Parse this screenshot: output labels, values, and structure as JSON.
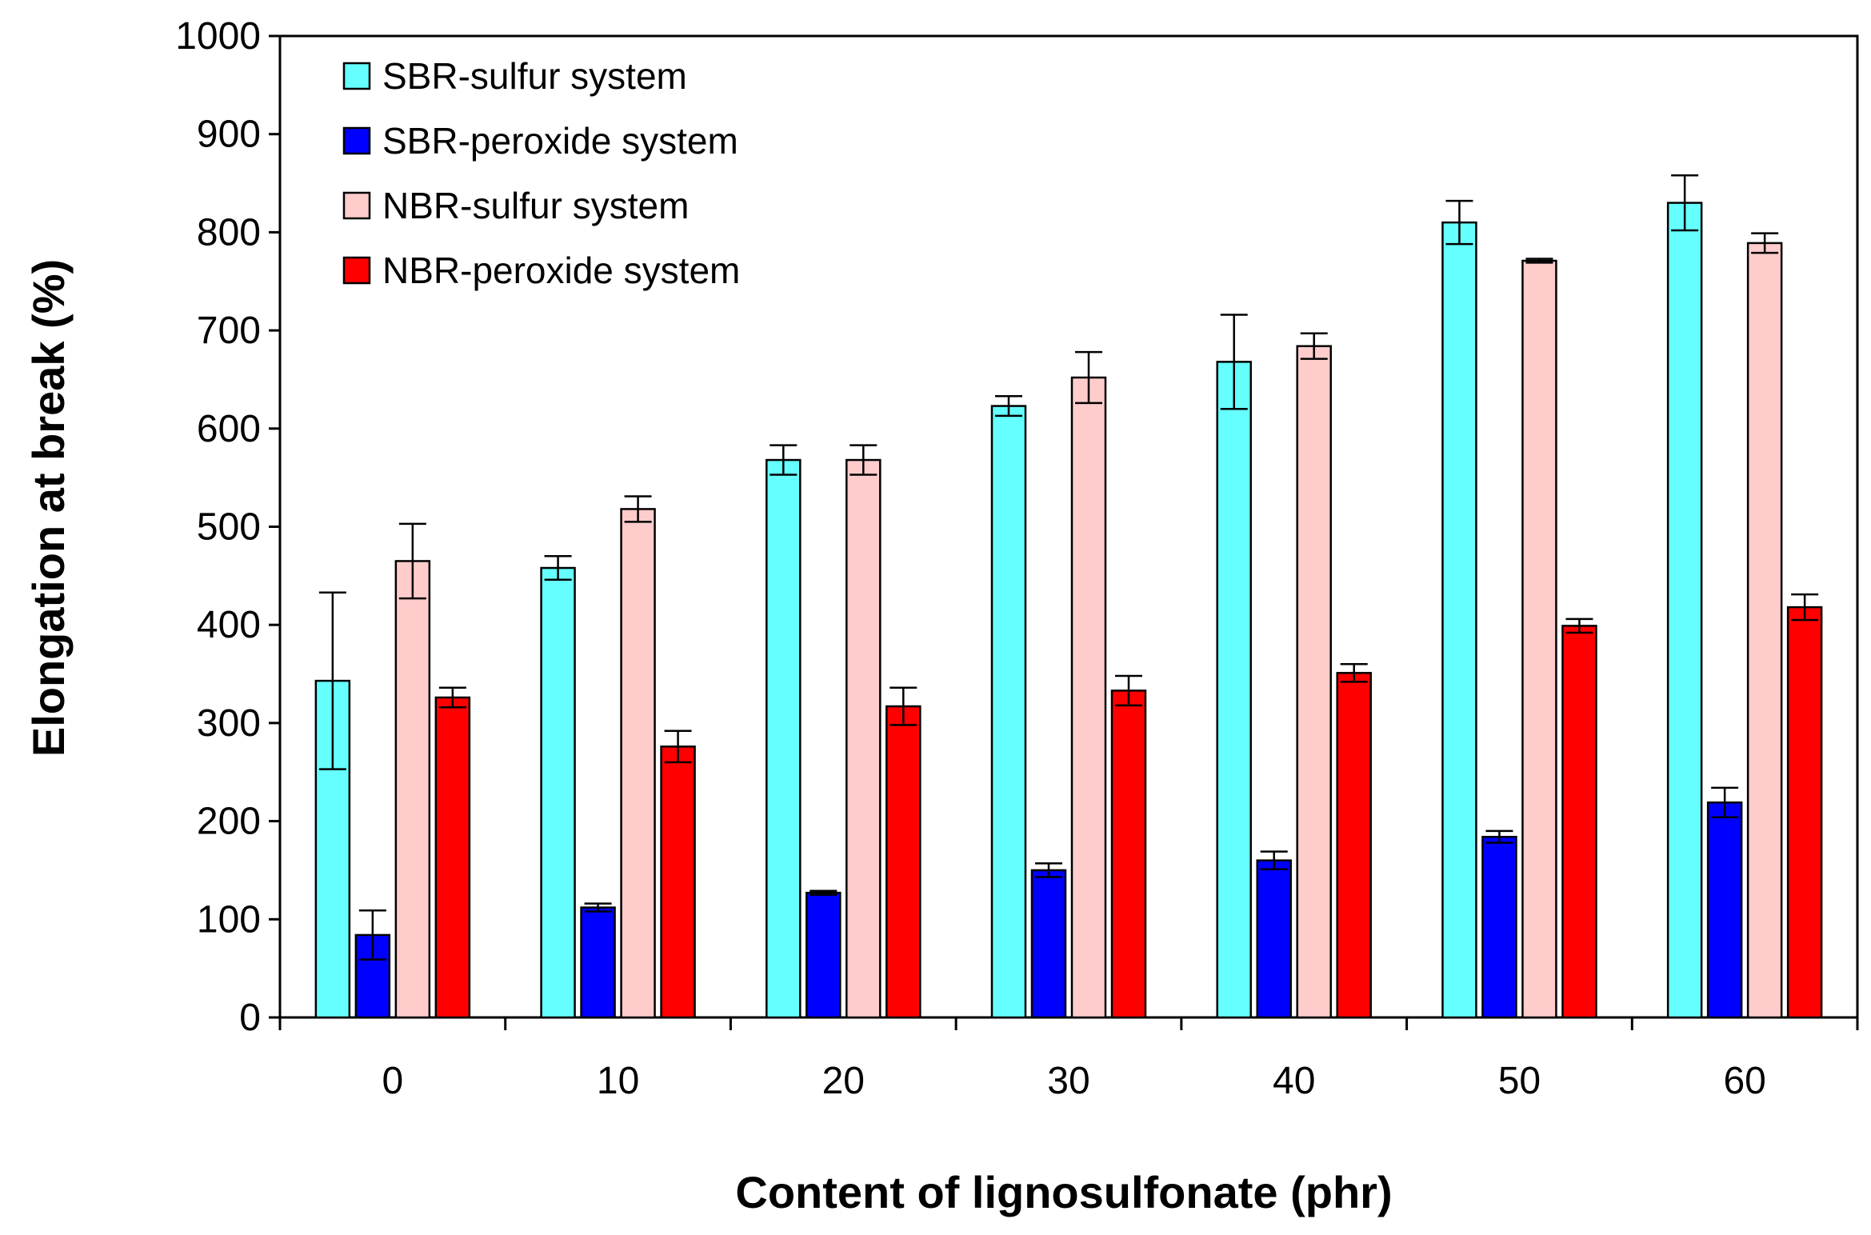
{
  "chart_data": {
    "type": "bar",
    "xlabel": "Content of lignosulfonate (phr)",
    "ylabel": "Elongation at break (%)",
    "ylim": [
      0,
      1000
    ],
    "yticks": [
      0,
      100,
      200,
      300,
      400,
      500,
      600,
      700,
      800,
      900,
      1000
    ],
    "categories": [
      "0",
      "10",
      "20",
      "30",
      "40",
      "50",
      "60"
    ],
    "legend_position": "top-left",
    "grid": false,
    "series": [
      {
        "name": "SBR-sulfur system",
        "color": "#66ffff",
        "values": [
          343,
          458,
          568,
          623,
          668,
          810,
          830
        ],
        "errors": [
          90,
          12,
          15,
          10,
          48,
          22,
          28
        ]
      },
      {
        "name": "SBR-peroxide system",
        "color": "#0000ff",
        "values": [
          84,
          112,
          127,
          150,
          160,
          184,
          219
        ],
        "errors": [
          25,
          4,
          2,
          7,
          9,
          6,
          15
        ]
      },
      {
        "name": "NBR-sulfur system",
        "color": "#ffcccc",
        "values": [
          465,
          518,
          568,
          652,
          684,
          771,
          789
        ],
        "errors": [
          38,
          13,
          15,
          26,
          13,
          2,
          10
        ]
      },
      {
        "name": "NBR-peroxide system",
        "color": "#ff0000",
        "values": [
          326,
          276,
          317,
          333,
          351,
          399,
          418
        ],
        "errors": [
          10,
          16,
          19,
          15,
          9,
          7,
          13
        ]
      }
    ]
  }
}
